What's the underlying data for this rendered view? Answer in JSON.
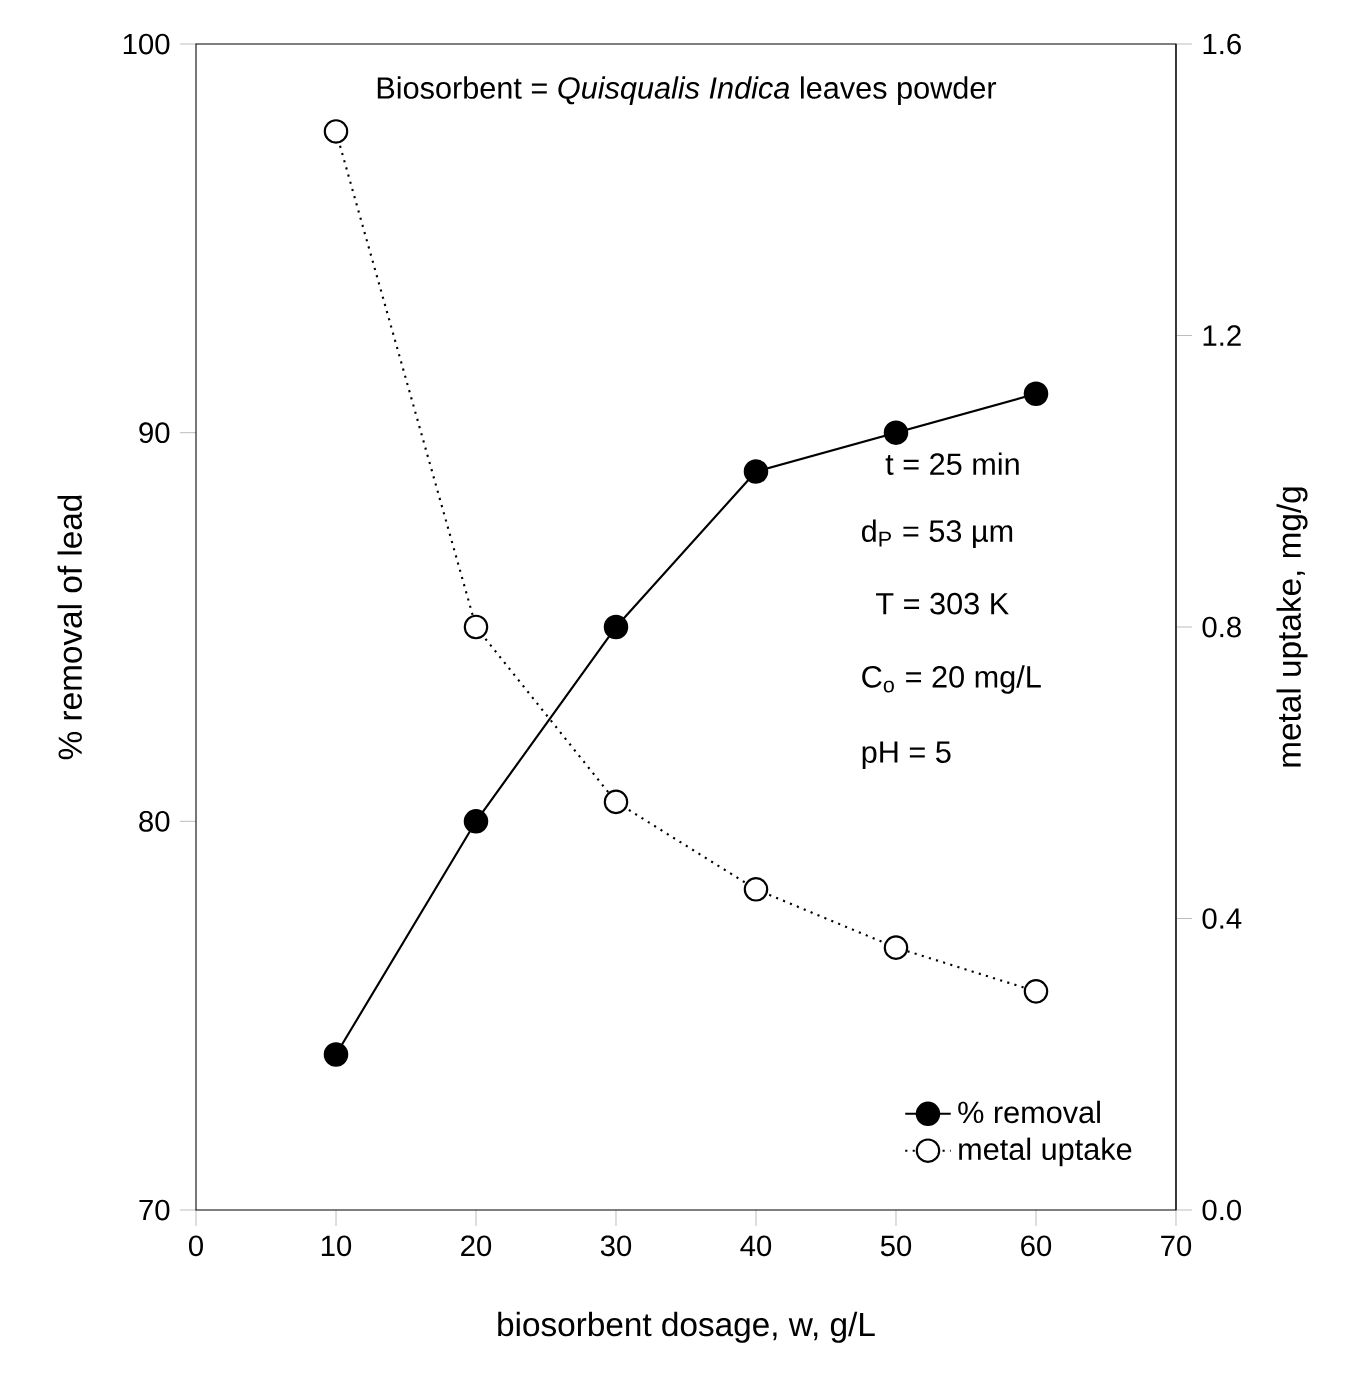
{
  "chart_data": {
    "type": "line",
    "xlabel": "biosorbent dosage, w, g/L",
    "ylabel": "% removal of lead",
    "y2label": "metal uptake, mg/g",
    "x": [
      10,
      20,
      30,
      40,
      50,
      60
    ],
    "series": [
      {
        "name": "% removal",
        "color": "#000000",
        "line_style": "solid",
        "values": [
          74,
          80,
          85,
          89,
          90,
          91
        ]
      },
      {
        "name": "metal uptake",
        "color": "#000000",
        "line_style": "dotted",
        "axis": "y2",
        "values": [
          1.48,
          0.8,
          0.56,
          0.44,
          0.36,
          0.3
        ]
      }
    ],
    "xlim": [
      0,
      70
    ],
    "xticks": [
      0,
      10,
      20,
      30,
      40,
      50,
      60,
      70
    ],
    "ylim": [
      70,
      100
    ],
    "yticks": [
      70,
      80,
      90,
      100
    ],
    "y2lim": [
      0,
      1.6
    ],
    "y2ticks": [
      {
        "value": 0,
        "label": "0.0"
      },
      {
        "value": 0.4,
        "label": "0.4"
      },
      {
        "value": 0.8,
        "label": "0.8"
      },
      {
        "value": 1.2,
        "label": "1.2"
      },
      {
        "value": 1.6,
        "label": "1.6"
      }
    ],
    "annotations": [
      "Biosorbent = *Quisqualis Indica* leaves powder",
      "t = 25 min",
      "d$_{P}$ = 53 µm",
      "T = 303 K",
      "C$_{o}$ = 20 mg/L",
      "pH = 5"
    ],
    "legend": "bottom right",
    "marker": "circle"
  }
}
